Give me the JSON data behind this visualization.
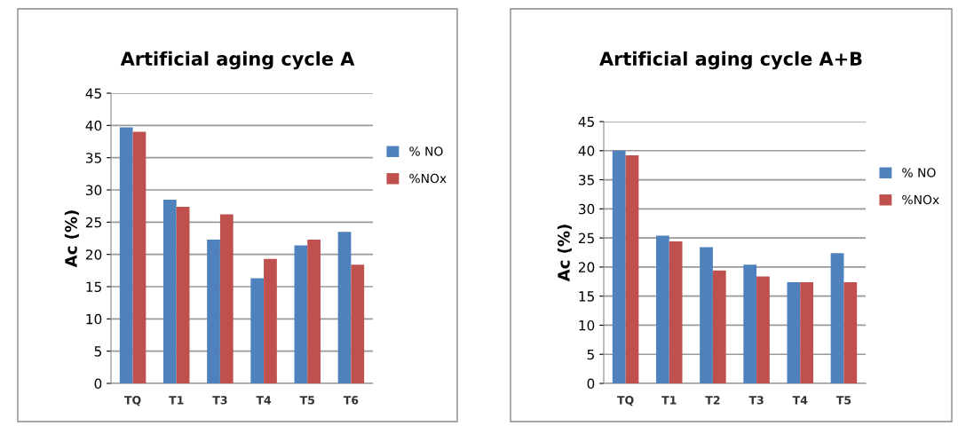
{
  "chart_data": [
    {
      "type": "bar",
      "title": "Artificial aging cycle A",
      "ylabel": "Ac (%)",
      "categories": [
        "TQ",
        "T1",
        "T3",
        "T4",
        "T5",
        "T6"
      ],
      "series": [
        {
          "name": "% NO",
          "color": "#4f81bd",
          "values": [
            39.7,
            28.5,
            22.3,
            16.3,
            21.4,
            23.5
          ]
        },
        {
          "name": "%NOx",
          "color": "#c0504d",
          "values": [
            39,
            27.4,
            26.2,
            19.3,
            22.3,
            18.4
          ]
        }
      ],
      "ylim": [
        0,
        45
      ],
      "yticks": [
        0,
        5,
        10,
        15,
        20,
        25,
        30,
        35,
        40,
        45
      ],
      "grid": "y",
      "legend": "right"
    },
    {
      "type": "bar",
      "title": "Artificial aging cycle A+B",
      "ylabel": "Ac (%)",
      "categories": [
        "TQ",
        "T1",
        "T2",
        "T3",
        "T4",
        "T5"
      ],
      "series": [
        {
          "name": "% NO",
          "color": "#4f81bd",
          "values": [
            40,
            25.4,
            23.4,
            20.4,
            17.4,
            22.4
          ]
        },
        {
          "name": "%NOx",
          "color": "#c0504d",
          "values": [
            39.2,
            24.4,
            19.4,
            18.4,
            17.4,
            17.4
          ]
        }
      ],
      "ylim": [
        0,
        45
      ],
      "yticks": [
        0,
        5,
        10,
        15,
        20,
        25,
        30,
        35,
        40,
        45
      ],
      "grid": "y",
      "legend": "right"
    }
  ]
}
